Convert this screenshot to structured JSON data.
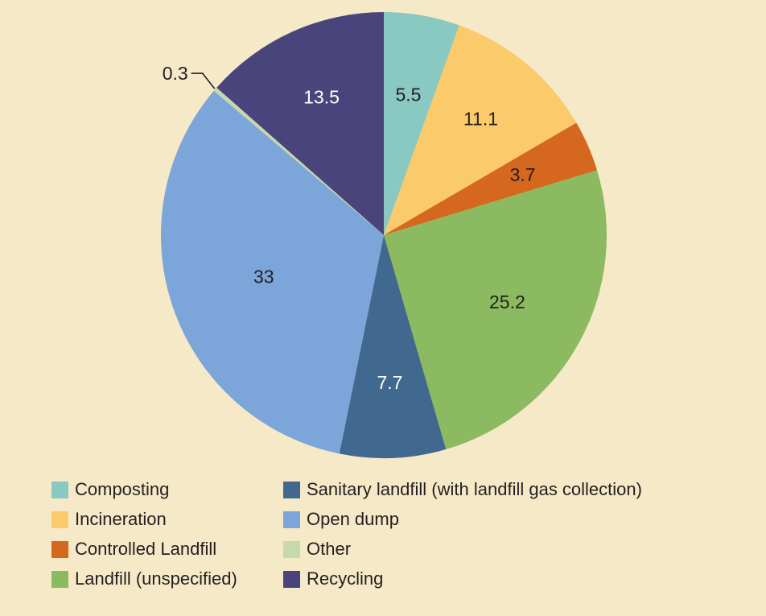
{
  "colors": {
    "background": "#F5E9C8",
    "text_dark": "#231F20",
    "text_light": "#FFFFFF"
  },
  "chart_data": {
    "type": "pie",
    "title": "",
    "unit": "percent",
    "total": 100,
    "start_angle_deg": 0,
    "direction": "clockwise",
    "legend_position": "bottom",
    "slices": [
      {
        "label": "Composting",
        "value": 5.5,
        "color": "#8AC8C2",
        "label_color": "#231F20",
        "label_r": 0.64
      },
      {
        "label": "Incineration",
        "value": 11.1,
        "color": "#FBCA6A",
        "label_color": "#231F20",
        "label_r": 0.68
      },
      {
        "label": "Controlled Landfill",
        "value": 3.7,
        "color": "#D6671F",
        "label_color": "#231F20",
        "label_r": 0.68
      },
      {
        "label": "Landfill (unspecified)",
        "value": 25.2,
        "color": "#8CBA60",
        "label_color": "#231F20",
        "label_r": 0.63
      },
      {
        "label": "Sanitary landfill (with landfill gas collection)",
        "value": 7.7,
        "color": "#41688F",
        "label_color": "#FFFFFF",
        "label_r": 0.66
      },
      {
        "label": "Open dump",
        "value": 33,
        "color": "#7CA5D9",
        "label_color": "#231F20",
        "label_r": 0.57
      },
      {
        "label": "Other",
        "value": 0.3,
        "color": "#C4D9AE",
        "label_color": "#231F20",
        "label_outside": true
      },
      {
        "label": "Recycling",
        "value": 13.5,
        "color": "#4A447C",
        "label_color": "#FFFFFF",
        "label_r": 0.68
      }
    ]
  },
  "legend": {
    "items": [
      {
        "label": "Composting",
        "color": "#8AC8C2"
      },
      {
        "label": "Incineration",
        "color": "#FBCA6A"
      },
      {
        "label": "Controlled Landfill",
        "color": "#D6671F"
      },
      {
        "label": "Landfill (unspecified)",
        "color": "#8CBA60"
      },
      {
        "label": "Sanitary landfill (with landfill gas collection)",
        "color": "#41688F"
      },
      {
        "label": "Open dump",
        "color": "#7CA5D9"
      },
      {
        "label": "Other",
        "color": "#C4D9AE"
      },
      {
        "label": "Recycling",
        "color": "#4A447C"
      }
    ]
  }
}
